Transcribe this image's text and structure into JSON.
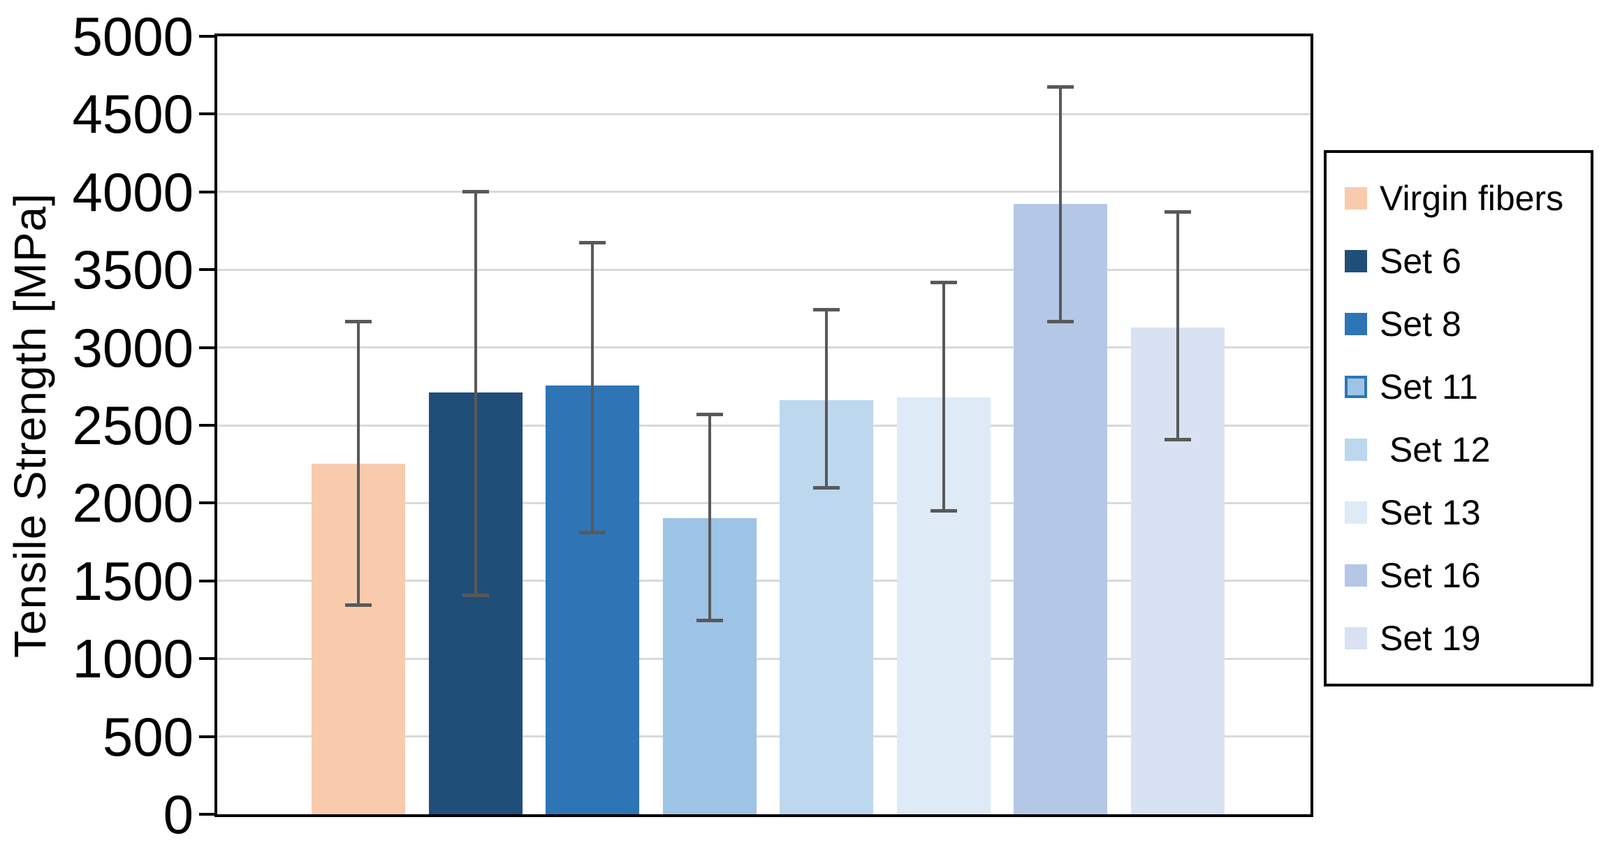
{
  "chart_data": {
    "type": "bar",
    "title": "",
    "xlabel": "",
    "ylabel": "Tensile Strength [MPa]",
    "ylim": [
      0,
      5000
    ],
    "ytick_interval": 500,
    "yticks": [
      0,
      500,
      1000,
      1500,
      2000,
      2500,
      3000,
      3500,
      4000,
      4500,
      5000
    ],
    "grid": true,
    "legend_position": "right-outside-boxed",
    "categories": [
      "Virgin fibers",
      "Set 6",
      "Set 8",
      "Set 11",
      "Set 12",
      "Set 13",
      "Set 16",
      "Set 19"
    ],
    "series": [
      {
        "name": "Tensile Strength",
        "values": [
          2255,
          2710,
          2755,
          1905,
          2660,
          2680,
          3925,
          3130
        ],
        "error_low": [
          1345,
          1405,
          1810,
          1245,
          2100,
          1950,
          3165,
          2410
        ],
        "error_high": [
          3165,
          4000,
          3675,
          2570,
          3245,
          3420,
          4675,
          3870
        ]
      }
    ],
    "bar_colors": [
      "#F8CBAD",
      "#1F4E79",
      "#2E75B6",
      "#9DC3E6",
      "#BDD7EE",
      "#DEEAF6",
      "#B4C7E7",
      "#D9E2F3"
    ]
  },
  "legend": {
    "items": [
      {
        "label": "Virgin fibers",
        "color": "#F8CBAD",
        "border": ""
      },
      {
        "label": "Set 6",
        "color": "#1F4E79",
        "border": ""
      },
      {
        "label": "Set 8",
        "color": "#2E75B6",
        "border": ""
      },
      {
        "label": "Set 11",
        "color": "#9DC3E6",
        "border": "#2E75B6"
      },
      {
        "label": " Set 12",
        "color": "#BDD7EE",
        "border": ""
      },
      {
        "label": "Set 13",
        "color": "#DEEAF6",
        "border": ""
      },
      {
        "label": "Set 16",
        "color": "#B4C7E7",
        "border": ""
      },
      {
        "label": "Set 19",
        "color": "#D9E2F3",
        "border": ""
      }
    ]
  },
  "colors": {
    "axis": "#000000",
    "gridline": "#D9D9D9",
    "error_bar": "#595959",
    "background": "#FFFFFF",
    "text": "#000000"
  }
}
